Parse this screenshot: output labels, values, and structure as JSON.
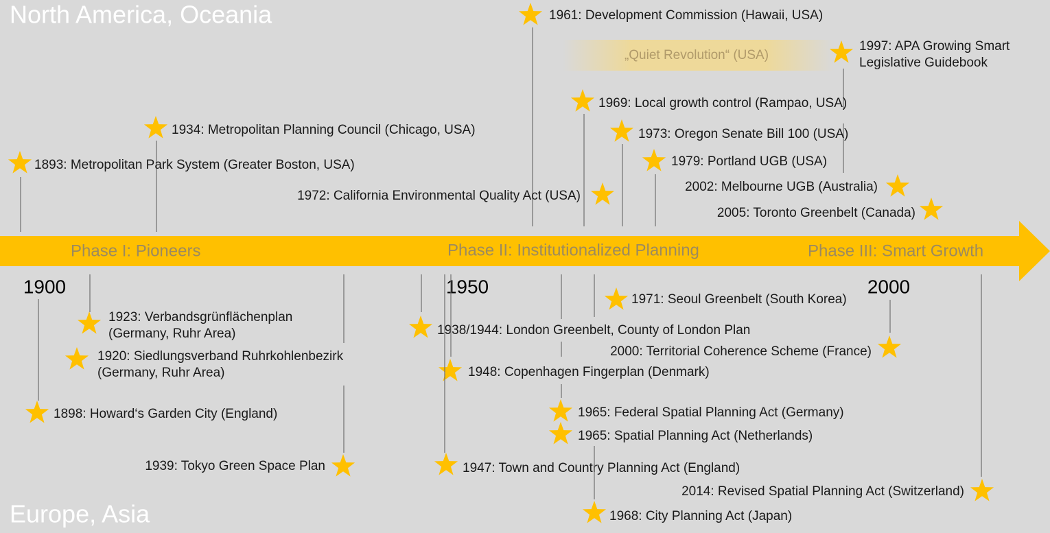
{
  "regions": {
    "top": "North America, Oceania",
    "bottom": "Europe, Asia"
  },
  "phases": [
    "Phase I: Pioneers",
    "Phase II: Institutionalized  Planning",
    "Phase III: Smart Growth"
  ],
  "years": [
    "1900",
    "1950",
    "2000"
  ],
  "highlight": "„Quiet Revolution“ (USA)",
  "events_top": [
    [
      "1961: Development Commission (Hawaii, USA)"
    ],
    [
      "1997: APA Growing Smart",
      "Legislative Guidebook"
    ],
    [
      "1969: Local growth control (Rampao, USA)"
    ],
    [
      "1934: Metropolitan Planning Council (Chicago, USA)"
    ],
    [
      "1973: Oregon Senate Bill 100 (USA)"
    ],
    [
      "1893: Metropolitan Park System (Greater Boston, USA)"
    ],
    [
      "1979: Portland UGB (USA)"
    ],
    [
      "2002: Melbourne UGB (Australia)"
    ],
    [
      "1972: California Environmental Quality Act (USA)"
    ],
    [
      "2005: Toronto Greenbelt (Canada)"
    ]
  ],
  "events_bottom": [
    [
      "1923: Verbandsgrünflächenplan",
      "(Germany, Ruhr Area)"
    ],
    [
      "1920: Siedlungsverband Ruhrkohlenbezirk",
      "(Germany, Ruhr Area)"
    ],
    [
      "1898: Howard‘s Garden City (England)"
    ],
    [
      "1939: Tokyo Green Space Plan"
    ],
    [
      "1971: Seoul Greenbelt (South Korea)"
    ],
    [
      "1938/1944: London Greenbelt, County of London Plan"
    ],
    [
      "2000: Territorial Coherence Scheme (France)"
    ],
    [
      "1948: Copenhagen Fingerplan (Denmark)"
    ],
    [
      "1965: Federal Spatial Planning Act (Germany)"
    ],
    [
      "1965: Spatial Planning Act (Netherlands)"
    ],
    [
      "1947: Town and Country Planning Act (England)"
    ],
    [
      "2014: Revised Spatial Planning Act (Switzerland)"
    ],
    [
      "1968: City Planning Act (Japan)"
    ]
  ]
}
